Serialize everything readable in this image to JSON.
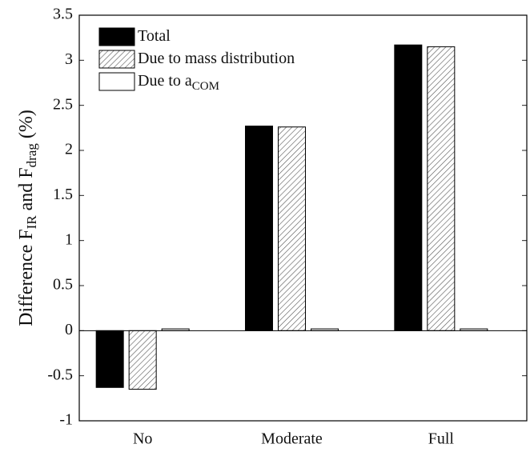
{
  "chart_data": {
    "type": "bar",
    "ylabel": [
      "Difference F",
      "IR",
      " and F",
      "drag",
      " (%)"
    ],
    "categories": [
      "No",
      "Moderate",
      "Full"
    ],
    "series": [
      {
        "name": "Total",
        "color": "#000000",
        "pattern": "solid",
        "values": [
          -0.63,
          2.27,
          3.17
        ]
      },
      {
        "name": "Due to mass distribution",
        "color": "#ffffff",
        "pattern": "hatch",
        "values": [
          -0.65,
          2.26,
          3.15
        ]
      },
      {
        "name": "Due to a",
        "name_subscript": "COM",
        "color": "#ffffff",
        "pattern": "solid",
        "values": [
          0.02,
          0.02,
          0.02
        ]
      }
    ],
    "ylim": [
      -1,
      3.5
    ],
    "yticks": [
      -1,
      -0.5,
      0,
      0.5,
      1,
      1.5,
      2,
      2.5,
      3,
      3.5
    ],
    "grid": false,
    "legend": "upper-left"
  }
}
